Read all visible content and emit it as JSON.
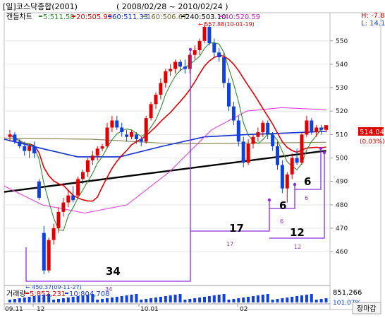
{
  "title": "[일]코스닥종합(2001)",
  "date_range": "( 2008/02/28 ~ 2010/02/24 )",
  "hl": {
    "h": "H: -7.86",
    "l": "L: 14.14"
  },
  "legend": {
    "candle": "캔들차트",
    "ma5": "5:511.58",
    "ma20": "20:505.99",
    "ma60": "60:511.33",
    "ma160": "160:506.67",
    "ma240": "240:503.10",
    "ma40": "40:520.59"
  },
  "colors": {
    "ma5": "#2e8b2e",
    "ma20": "#e00000",
    "ma60": "#1030d0",
    "ma160": "#8a8a5a",
    "ma240": "#000000",
    "ma40": "#e040e0",
    "up": "#e00000",
    "down": "#1040e0",
    "annot": "#8a2be2",
    "price_box": "#e00000",
    "vol_down": "#1040e0"
  },
  "price_label": "514.04",
  "price_change": "(0.03%)",
  "high_annotation": "← 557.88(10-01-19)",
  "low_annotation": "← 450.37(09-11-27)",
  "volume_legend": {
    "title": "거래량",
    "v5": "5:852,231",
    "v10": "10:804,708"
  },
  "volume_value": "851,266",
  "volume_pct": "101.07%",
  "x_ticks": [
    "09.11",
    "12",
    "10.01",
    "02"
  ],
  "bottom_button": "장마감",
  "counts": [
    {
      "big": "34",
      "small": "34"
    },
    {
      "big": "17",
      "small": "17"
    },
    {
      "big": "12",
      "small": "12"
    },
    {
      "big": "6",
      "small": "6"
    },
    {
      "big": "6",
      "small": "6"
    }
  ],
  "chart_data": {
    "type": "candlestick",
    "yticks": [
      460,
      470,
      480,
      490,
      500,
      510,
      520,
      530,
      540,
      550
    ],
    "ylim": [
      451,
      562
    ],
    "candles": [
      [
        509,
        512,
        507,
        510
      ],
      [
        510,
        511,
        506,
        507
      ],
      [
        507,
        508,
        504,
        505
      ],
      [
        505,
        507,
        501,
        503
      ],
      [
        503,
        506,
        500,
        505
      ],
      [
        505,
        507,
        500,
        502
      ],
      [
        490,
        491,
        482,
        483
      ],
      [
        468,
        471,
        450.37,
        452
      ],
      [
        452,
        466,
        451,
        465
      ],
      [
        465,
        472,
        463,
        470
      ],
      [
        470,
        479,
        468,
        477
      ],
      [
        477,
        483,
        475,
        481
      ],
      [
        481,
        486,
        479,
        484
      ],
      [
        484,
        488,
        481,
        482
      ],
      [
        484,
        492,
        483,
        491
      ],
      [
        491,
        495,
        489,
        494
      ],
      [
        494,
        500,
        492,
        499
      ],
      [
        499,
        503,
        497,
        501
      ],
      [
        501,
        505,
        499,
        504
      ],
      [
        504,
        506,
        503,
        505
      ],
      [
        505,
        515,
        504,
        513
      ],
      [
        513,
        518,
        511,
        516
      ],
      [
        516,
        518,
        512,
        513
      ],
      [
        513,
        515,
        509,
        511
      ],
      [
        510,
        512,
        507,
        509
      ],
      [
        509,
        512,
        508,
        511
      ],
      [
        510,
        511,
        506,
        508
      ],
      [
        508,
        509,
        505,
        507
      ],
      [
        507,
        518,
        506,
        517
      ],
      [
        517,
        524,
        516,
        523
      ],
      [
        523,
        528,
        521,
        527
      ],
      [
        527,
        534,
        525,
        532
      ],
      [
        532,
        538,
        530,
        537
      ],
      [
        537,
        540,
        535,
        538
      ],
      [
        538,
        542,
        536,
        541
      ],
      [
        541,
        542,
        537,
        539
      ],
      [
        539,
        542,
        536,
        538
      ],
      [
        538,
        545,
        536,
        544
      ],
      [
        544,
        548,
        542,
        546
      ],
      [
        546,
        551,
        544,
        550
      ],
      [
        550,
        557.88,
        549,
        556
      ],
      [
        556,
        557,
        548,
        549
      ],
      [
        549,
        551,
        543,
        545
      ],
      [
        545,
        547,
        541,
        543
      ],
      [
        543,
        545,
        530,
        532
      ],
      [
        532,
        534,
        520,
        522
      ],
      [
        522,
        524,
        514,
        516
      ],
      [
        516,
        518,
        505,
        507
      ],
      [
        507,
        509,
        496,
        498
      ],
      [
        498,
        508,
        497,
        506
      ],
      [
        506,
        510,
        504,
        509
      ],
      [
        509,
        513,
        507,
        511
      ],
      [
        511,
        516,
        509,
        515
      ],
      [
        515,
        516,
        508,
        510
      ],
      [
        510,
        511,
        503,
        505
      ],
      [
        505,
        507,
        495,
        497
      ],
      [
        497,
        499,
        485,
        487
      ],
      [
        487,
        494,
        481,
        493
      ],
      [
        493,
        502,
        491,
        500
      ],
      [
        500,
        504,
        497,
        498
      ],
      [
        498,
        511,
        497,
        510
      ],
      [
        510,
        518,
        509,
        516
      ],
      [
        516,
        517,
        510,
        511
      ],
      [
        511,
        514,
        509,
        513
      ],
      [
        513,
        514,
        510,
        512
      ],
      [
        512,
        513,
        511,
        514
      ]
    ]
  }
}
